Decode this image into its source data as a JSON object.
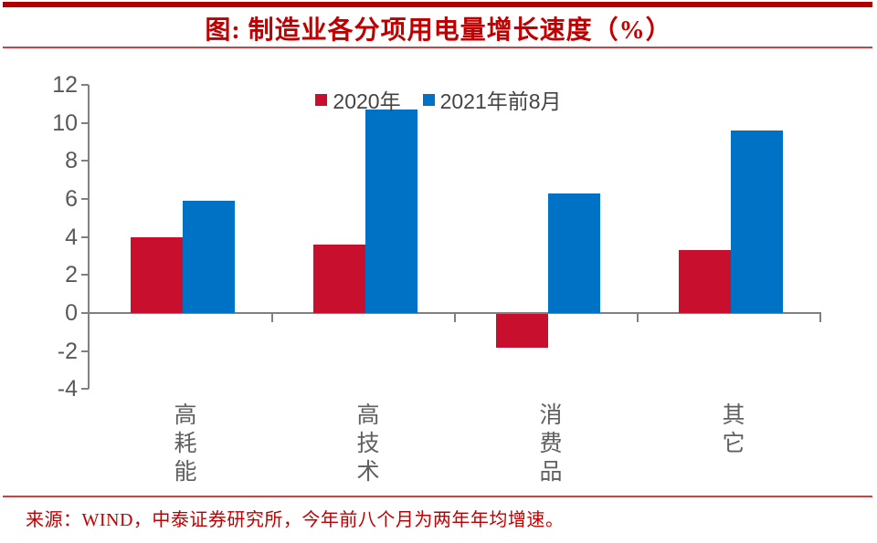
{
  "page": {
    "title": "图: 制造业各分项用电量增长速度（%）",
    "source": "来源：WIND，中泰证券研究所，今年前八个月为两年年均增速。"
  },
  "colors": {
    "title_red": "#C00000",
    "top_rule_red": "#B00000",
    "thin_rule_red": "#C00000",
    "source_red": "#C00000",
    "bar_2020_red": "#C8102E",
    "bar_2021_blue": "#0072C6",
    "axis_gray": "#808080",
    "tick_label_gray": "#595959",
    "legend_text_gray": "#444444",
    "category_label_gray": "#606060"
  },
  "chart_data": {
    "type": "bar",
    "title": "图: 制造业各分项用电量增长速度（%）",
    "categories": [
      "高耗能",
      "高技术",
      "消费品",
      "其它"
    ],
    "series": [
      {
        "name": "2020年",
        "color": "#C8102E",
        "values": [
          4.0,
          3.6,
          -1.8,
          3.3
        ]
      },
      {
        "name": "2021年前8月",
        "color": "#0072C6",
        "values": [
          5.9,
          10.7,
          6.3,
          9.6
        ]
      }
    ],
    "ylim": [
      -4,
      12
    ],
    "yticks": [
      12,
      10,
      8,
      6,
      4,
      2,
      0,
      -2,
      -4
    ],
    "xlabel": "",
    "ylabel": "",
    "grid": false,
    "legend_position": "top-center",
    "source_note": "来源：WIND，中泰证券研究所，今年前八个月为两年年均增速。"
  }
}
